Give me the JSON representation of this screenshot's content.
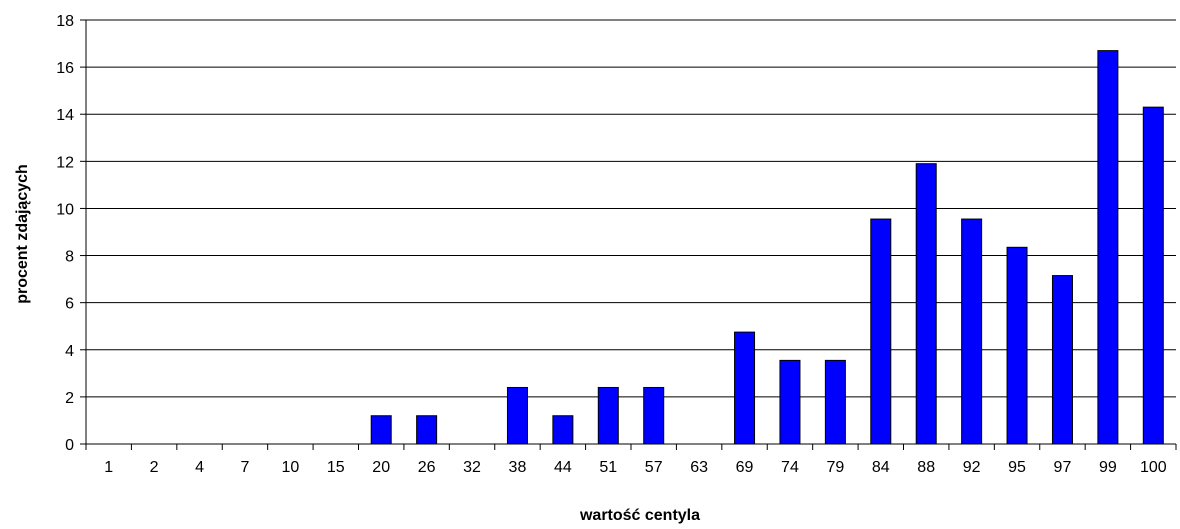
{
  "chart_data": {
    "type": "bar",
    "title": "",
    "xlabel": "wartość centyla",
    "ylabel": "procent zdających",
    "categories": [
      "1",
      "2",
      "4",
      "7",
      "10",
      "15",
      "20",
      "26",
      "32",
      "38",
      "44",
      "51",
      "57",
      "63",
      "69",
      "74",
      "79",
      "84",
      "88",
      "92",
      "95",
      "97",
      "99",
      "100"
    ],
    "values": [
      0,
      0,
      0,
      0,
      0,
      0,
      1.2,
      1.2,
      0,
      2.4,
      1.2,
      2.4,
      2.4,
      0,
      4.75,
      3.55,
      3.55,
      9.55,
      11.9,
      9.55,
      8.35,
      7.15,
      16.7,
      14.3
    ],
    "ylim": [
      0,
      18
    ],
    "yticks": [
      0,
      2,
      4,
      6,
      8,
      10,
      12,
      14,
      16,
      18
    ],
    "grid": true,
    "legend": "none",
    "bar_color": "#0000ff",
    "bar_stroke": "#000000"
  }
}
